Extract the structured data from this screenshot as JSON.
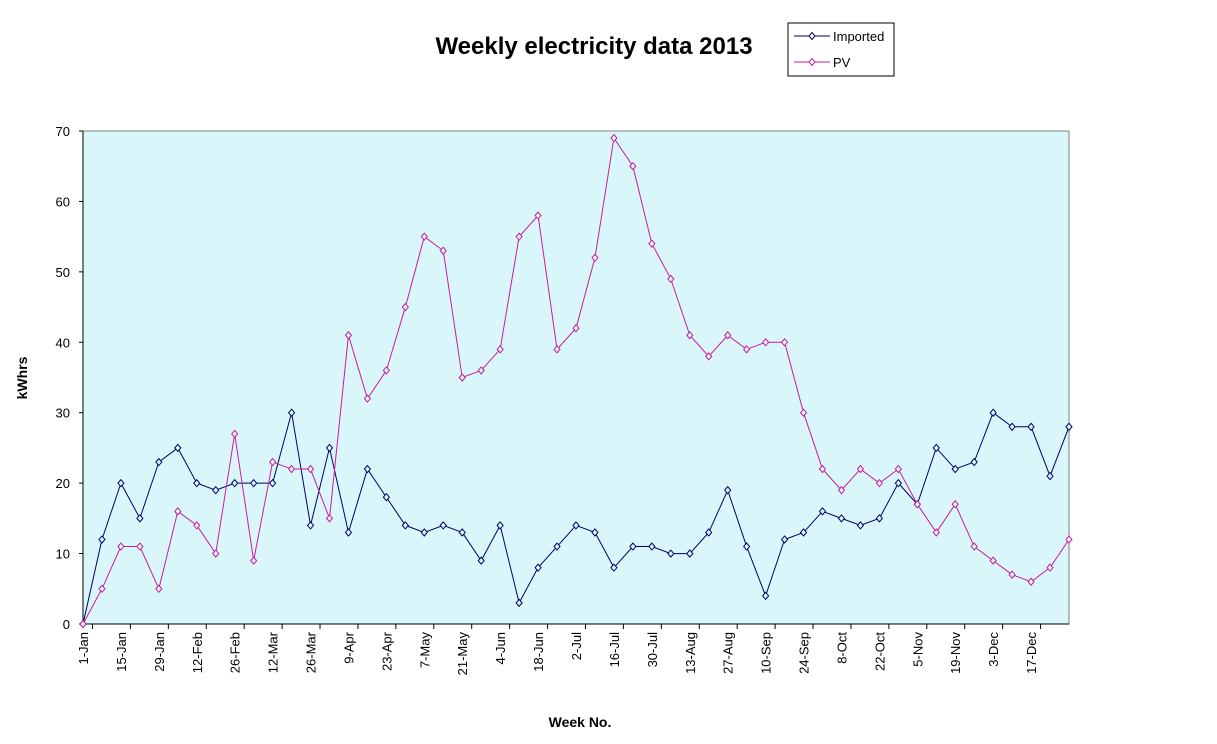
{
  "chart_data": {
    "type": "line",
    "title": "Weekly electricity data 2013",
    "xlabel": "Week No.",
    "ylabel": "kWhrs",
    "ylim": [
      0,
      70
    ],
    "yticks": [
      0,
      10,
      20,
      30,
      40,
      50,
      60,
      70
    ],
    "grid": false,
    "legend_position": "top-right",
    "plot_background": "#d9f7fa",
    "week_count": 53,
    "x_tick_labels": [
      "1-Jan",
      "15-Jan",
      "29-Jan",
      "12-Feb",
      "26-Feb",
      "12-Mar",
      "26-Mar",
      "9-Apr",
      "23-Apr",
      "7-May",
      "21-May",
      "4-Jun",
      "18-Jun",
      "2-Jul",
      "16-Jul",
      "30-Jul",
      "13-Aug",
      "27-Aug",
      "10-Sep",
      "24-Sep",
      "8-Oct",
      "22-Oct",
      "5-Nov",
      "19-Nov",
      "3-Dec",
      "17-Dec"
    ],
    "series": [
      {
        "name": "Imported",
        "color": "#000066",
        "values": [
          0,
          12,
          20,
          15,
          23,
          25,
          20,
          19,
          20,
          20,
          20,
          30,
          14,
          25,
          13,
          22,
          18,
          14,
          13,
          14,
          13,
          9,
          14,
          3,
          8,
          11,
          14,
          13,
          8,
          11,
          11,
          10,
          10,
          13,
          19,
          11,
          4,
          12,
          13,
          16,
          15,
          14,
          15,
          20,
          17,
          25,
          22,
          23,
          30,
          28,
          28,
          21,
          28
        ]
      },
      {
        "name": "PV",
        "color": "#cc1a99",
        "values": [
          0,
          5,
          11,
          11,
          5,
          16,
          14,
          10,
          27,
          9,
          23,
          22,
          22,
          15,
          41,
          32,
          36,
          45,
          55,
          53,
          35,
          36,
          39,
          55,
          58,
          39,
          42,
          52,
          69,
          65,
          54,
          49,
          41,
          38,
          41,
          39,
          40,
          40,
          30,
          22,
          19,
          22,
          20,
          22,
          17,
          13,
          17,
          11,
          9,
          7,
          6,
          8,
          12
        ]
      }
    ]
  }
}
